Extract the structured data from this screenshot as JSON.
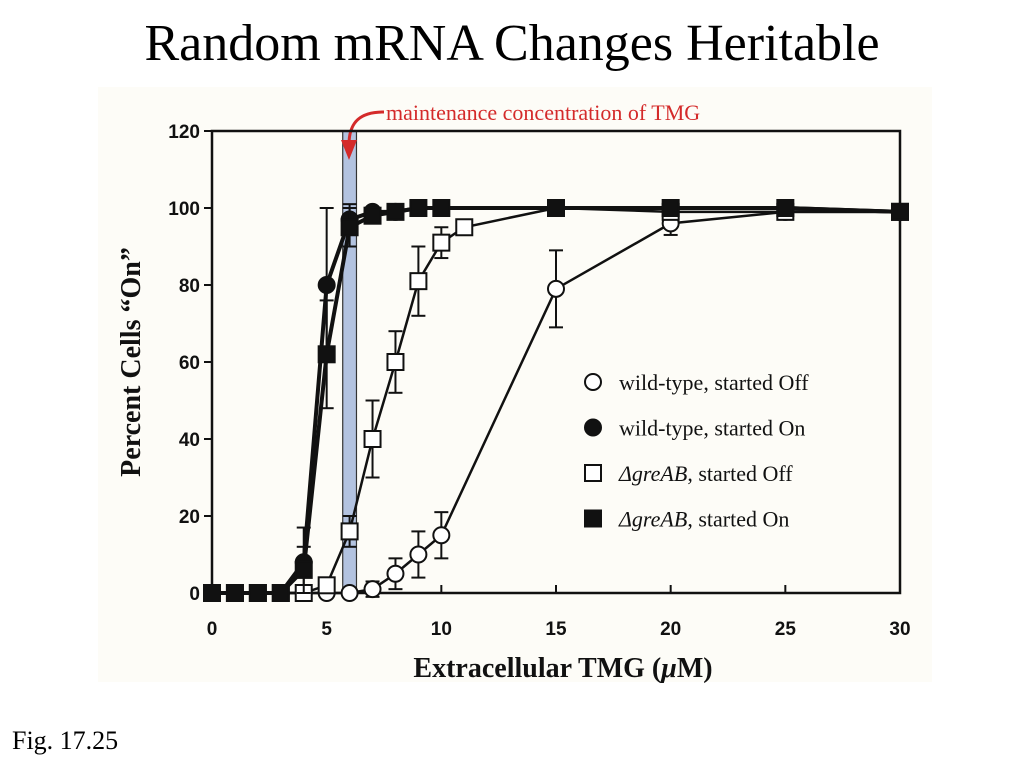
{
  "slide": {
    "title": "Random mRNA Changes Heritable",
    "caption": "Fig. 17.25"
  },
  "colors": {
    "annotation": "#d42a2a",
    "highlight_band": "#b3c3e0",
    "plot_background": "#fdfcf7",
    "ink": "#111111"
  },
  "chart_data": {
    "type": "line",
    "title": "",
    "xlabel": "Extracellular TMG (μM)",
    "xlabel_parts": {
      "before": "Extracellular TMG (",
      "mu": "μ",
      "after": "M)"
    },
    "ylabel": "Percent Cells “On”",
    "xlim": [
      0,
      30
    ],
    "ylim": [
      0,
      120
    ],
    "xticks": [
      0,
      5,
      10,
      15,
      20,
      25,
      30
    ],
    "yticks": [
      0,
      20,
      40,
      60,
      80,
      100,
      120
    ],
    "grid": false,
    "legend_position": "right-center",
    "annotation": {
      "text": "maintenance concentration of TMG",
      "highlight_x_range": [
        5.7,
        6.3
      ]
    },
    "series": [
      {
        "name": "wild-type, started Off",
        "marker": "circle",
        "filled": false,
        "x": [
          0,
          1,
          2,
          3,
          4,
          5,
          6,
          7,
          8,
          9,
          10,
          15,
          20,
          25,
          30
        ],
        "y": [
          0,
          0,
          0,
          0,
          0,
          0,
          0,
          1,
          5,
          10,
          15,
          79,
          96,
          99,
          99
        ],
        "err": [
          0,
          0,
          0,
          0,
          0,
          0,
          0,
          2,
          4,
          6,
          6,
          10,
          3,
          2,
          2
        ]
      },
      {
        "name": "wild-type, started On",
        "marker": "circle",
        "filled": true,
        "x": [
          0,
          1,
          2,
          3,
          4,
          5,
          6,
          7,
          8,
          9,
          10,
          15,
          20,
          25,
          30
        ],
        "y": [
          0,
          0,
          0,
          0,
          8,
          80,
          97,
          99,
          99,
          100,
          100,
          100,
          100,
          100,
          99
        ],
        "err": [
          0,
          0,
          0,
          0,
          9,
          20,
          4,
          1,
          1,
          1,
          1,
          1,
          1,
          1,
          1
        ]
      },
      {
        "name": "ΔgreAB, started Off",
        "name_parts": {
          "delta": "Δ",
          "gene": "greAB",
          "rest": ", started Off"
        },
        "marker": "square",
        "filled": false,
        "x": [
          0,
          1,
          2,
          3,
          4,
          5,
          6,
          7,
          8,
          9,
          10,
          11,
          15,
          20,
          25,
          30
        ],
        "y": [
          0,
          0,
          0,
          0,
          0,
          2,
          16,
          40,
          60,
          81,
          91,
          95,
          100,
          99,
          99,
          99
        ],
        "err": [
          0,
          0,
          0,
          0,
          0,
          2,
          4,
          10,
          8,
          9,
          4,
          2,
          1,
          1,
          1,
          1
        ]
      },
      {
        "name": "ΔgreAB, started On",
        "name_parts": {
          "delta": "Δ",
          "gene": "greAB",
          "rest": ", started On"
        },
        "marker": "square",
        "filled": true,
        "x": [
          0,
          1,
          2,
          3,
          4,
          5,
          6,
          7,
          8,
          9,
          10,
          15,
          20,
          25,
          30
        ],
        "y": [
          0,
          0,
          0,
          0,
          6,
          62,
          95,
          98,
          99,
          100,
          100,
          100,
          100,
          100,
          99
        ],
        "err": [
          0,
          0,
          0,
          0,
          6,
          14,
          5,
          1,
          1,
          1,
          1,
          1,
          1,
          1,
          1
        ]
      }
    ]
  }
}
